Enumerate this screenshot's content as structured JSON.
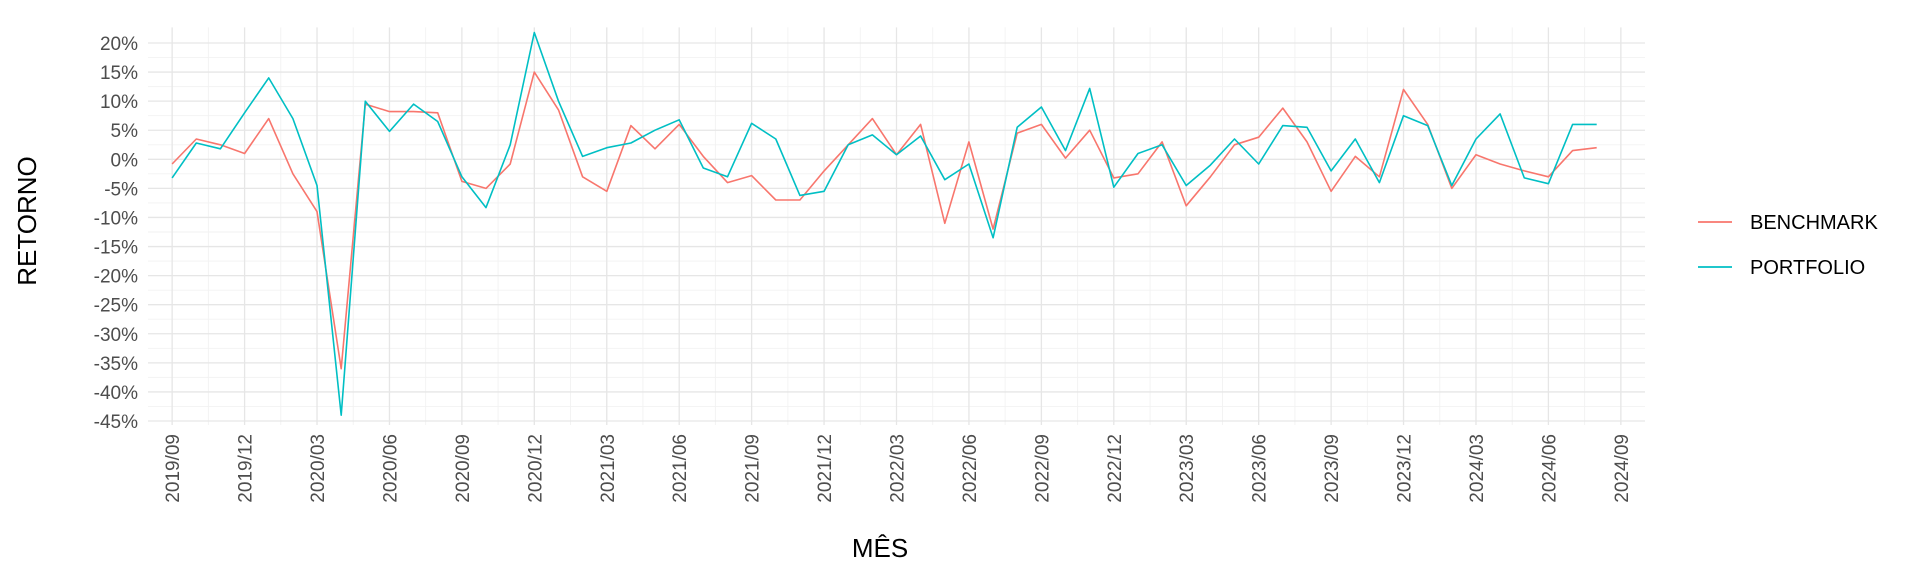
{
  "chart_data": {
    "type": "line",
    "xlabel": "MÊS",
    "ylabel": "RETORNO",
    "ylim": [
      -45,
      22
    ],
    "x_range": [
      "2019-08",
      "2024-10"
    ],
    "y_ticks": [
      "20%",
      "15%",
      "10%",
      "5%",
      "0%",
      "-5%",
      "-10%",
      "-15%",
      "-20%",
      "-25%",
      "-30%",
      "-35%",
      "-40%",
      "-45%"
    ],
    "x_ticks": [
      "2019/09",
      "2019/12",
      "2020/03",
      "2020/06",
      "2020/09",
      "2020/12",
      "2021/03",
      "2021/06",
      "2021/09",
      "2021/12",
      "2022/03",
      "2022/06",
      "2022/09",
      "2022/12",
      "2023/03",
      "2023/06",
      "2023/09",
      "2023/12",
      "2024/03",
      "2024/06",
      "2024/09"
    ],
    "grid": true,
    "legend_position": "right",
    "x": [
      "2019-09",
      "2019-10",
      "2019-11",
      "2019-12",
      "2020-01",
      "2020-02",
      "2020-03",
      "2020-04",
      "2020-05",
      "2020-06",
      "2020-07",
      "2020-08",
      "2020-09",
      "2020-10",
      "2020-11",
      "2020-12",
      "2021-01",
      "2021-02",
      "2021-03",
      "2021-04",
      "2021-05",
      "2021-06",
      "2021-07",
      "2021-08",
      "2021-09",
      "2021-10",
      "2021-11",
      "2021-12",
      "2022-01",
      "2022-02",
      "2022-03",
      "2022-04",
      "2022-05",
      "2022-06",
      "2022-07",
      "2022-08",
      "2022-09",
      "2022-10",
      "2022-11",
      "2022-12",
      "2023-01",
      "2023-02",
      "2023-03",
      "2023-04",
      "2023-05",
      "2023-06",
      "2023-07",
      "2023-08",
      "2023-09",
      "2023-10",
      "2023-11",
      "2023-12",
      "2024-01",
      "2024-02",
      "2024-03",
      "2024-04",
      "2024-05",
      "2024-06",
      "2024-07",
      "2024-08"
    ],
    "series": [
      {
        "name": "BENCHMARK",
        "color": "#F8766D",
        "values": [
          -0.8,
          3.5,
          2.5,
          1.0,
          7.0,
          -2.5,
          -9.0,
          -36.0,
          9.5,
          8.2,
          8.2,
          8.0,
          -3.8,
          -5.0,
          -0.8,
          15.0,
          8.5,
          -3.0,
          -5.5,
          5.8,
          1.8,
          6.0,
          0.5,
          -4.0,
          -2.8,
          -7.0,
          -7.0,
          -2.0,
          2.5,
          7.0,
          0.8,
          6.0,
          -11.0,
          3.0,
          -12.0,
          4.5,
          6.0,
          0.2,
          5.0,
          -3.2,
          -2.5,
          3.0,
          -8.0,
          -3.0,
          2.5,
          3.8,
          8.8,
          3.0,
          -5.5,
          0.5,
          -3.0,
          12.0,
          6.0,
          -5.0,
          0.8,
          -0.8,
          -2.0,
          -3.0,
          1.5,
          2.0
        ]
      },
      {
        "name": "PORTFOLIO",
        "color": "#00BFC4",
        "values": [
          -3.2,
          2.8,
          1.8,
          8.0,
          14.0,
          7.0,
          -4.5,
          -44.0,
          10.0,
          4.8,
          9.5,
          6.5,
          -3.0,
          -8.3,
          2.5,
          21.8,
          10.0,
          0.5,
          2.0,
          2.8,
          5.0,
          6.8,
          -1.5,
          -3.0,
          6.2,
          3.5,
          -6.2,
          -5.5,
          2.5,
          4.2,
          0.8,
          4.0,
          -3.5,
          -0.8,
          -13.5,
          5.5,
          9.0,
          1.5,
          12.2,
          -4.8,
          1.0,
          2.5,
          -4.5,
          -1.0,
          3.5,
          -0.8,
          5.8,
          5.5,
          -2.0,
          3.5,
          -4.0,
          7.5,
          5.8,
          -4.5,
          3.5,
          7.8,
          -3.2,
          -4.2,
          6.0,
          6.0
        ]
      }
    ]
  }
}
